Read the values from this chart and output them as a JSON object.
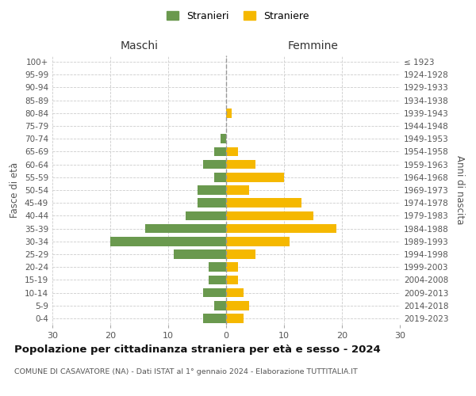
{
  "age_groups": [
    "0-4",
    "5-9",
    "10-14",
    "15-19",
    "20-24",
    "25-29",
    "30-34",
    "35-39",
    "40-44",
    "45-49",
    "50-54",
    "55-59",
    "60-64",
    "65-69",
    "70-74",
    "75-79",
    "80-84",
    "85-89",
    "90-94",
    "95-99",
    "100+"
  ],
  "birth_years": [
    "2019-2023",
    "2014-2018",
    "2009-2013",
    "2004-2008",
    "1999-2003",
    "1994-1998",
    "1989-1993",
    "1984-1988",
    "1979-1983",
    "1974-1978",
    "1969-1973",
    "1964-1968",
    "1959-1963",
    "1954-1958",
    "1949-1953",
    "1944-1948",
    "1939-1943",
    "1934-1938",
    "1929-1933",
    "1924-1928",
    "≤ 1923"
  ],
  "maschi": [
    4,
    2,
    4,
    3,
    3,
    9,
    20,
    14,
    7,
    5,
    5,
    2,
    4,
    2,
    1,
    0,
    0,
    0,
    0,
    0,
    0
  ],
  "femmine": [
    3,
    4,
    3,
    2,
    2,
    5,
    11,
    19,
    15,
    13,
    4,
    10,
    5,
    2,
    0,
    0,
    1,
    0,
    0,
    0,
    0
  ],
  "male_color": "#6a994e",
  "female_color": "#f5b800",
  "background_color": "#ffffff",
  "grid_color": "#cccccc",
  "title": "Popolazione per cittadinanza straniera per età e sesso - 2024",
  "subtitle": "COMUNE DI CASAVATORE (NA) - Dati ISTAT al 1° gennaio 2024 - Elaborazione TUTTITALIA.IT",
  "xlabel_left": "Maschi",
  "xlabel_right": "Femmine",
  "ylabel_left": "Fasce di età",
  "ylabel_right": "Anni di nascita",
  "xlim": 30,
  "legend_labels": [
    "Stranieri",
    "Straniere"
  ]
}
